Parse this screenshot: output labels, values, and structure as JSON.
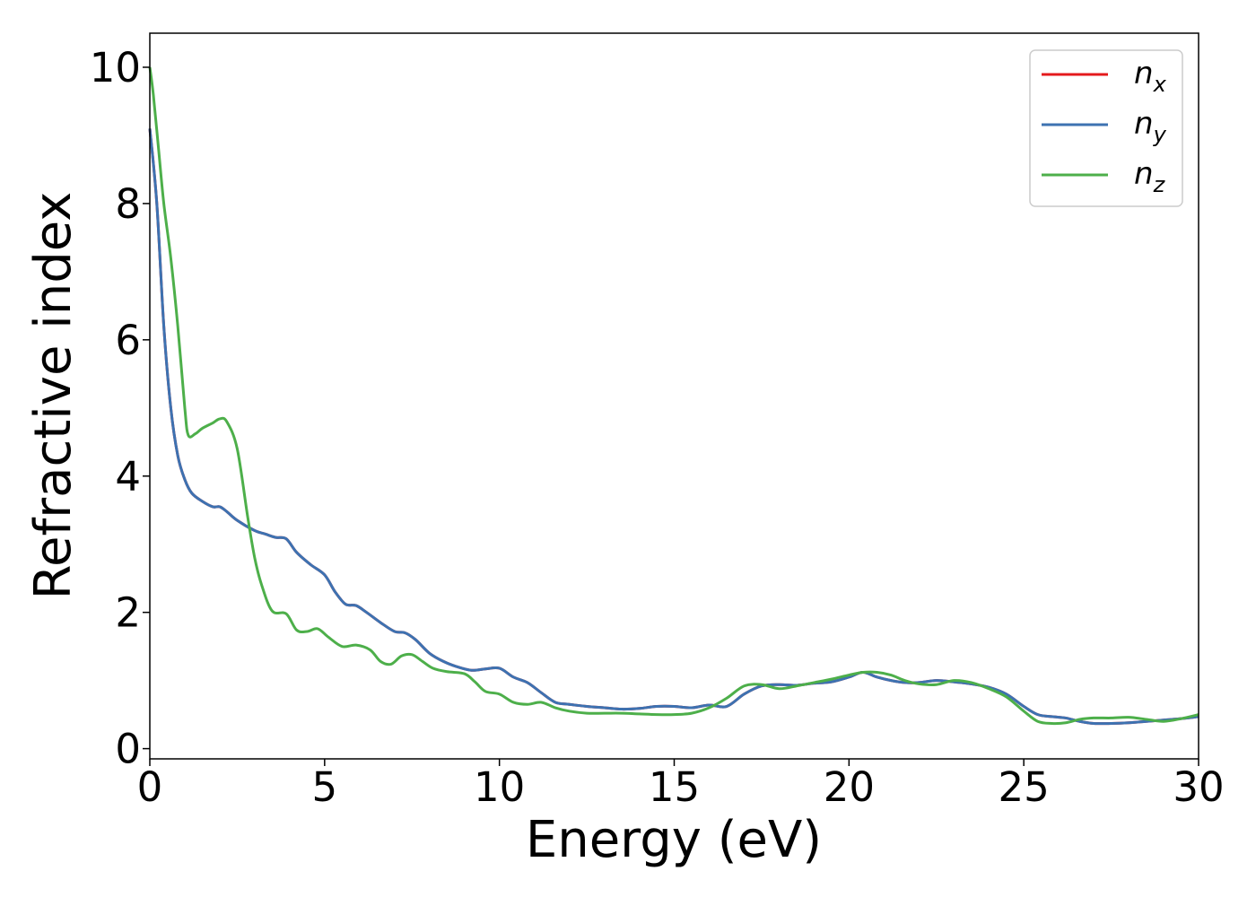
{
  "chart_data": {
    "type": "line",
    "title": "",
    "xlabel": "Energy (eV)",
    "ylabel": "Refractive index",
    "xlim": [
      0,
      30
    ],
    "ylim": [
      -0.15,
      10.5
    ],
    "xticks": [
      0,
      5,
      10,
      15,
      20,
      25,
      30
    ],
    "yticks": [
      0,
      2,
      4,
      6,
      8,
      10
    ],
    "grid": false,
    "legend_position": "top-right",
    "series": [
      {
        "name": "n_x",
        "label_base": "n",
        "label_sub": "x",
        "color": "#e41a1c",
        "x": [
          0,
          0.2,
          0.4,
          0.6,
          0.8,
          1.0,
          1.2,
          1.5,
          1.8,
          2.0,
          2.2,
          2.5,
          3.0,
          3.3,
          3.6,
          3.9,
          4.2,
          4.6,
          5.0,
          5.3,
          5.6,
          5.9,
          6.2,
          6.6,
          7.0,
          7.3,
          7.6,
          8.0,
          8.4,
          8.8,
          9.2,
          9.6,
          10.0,
          10.4,
          10.8,
          11.2,
          11.6,
          12.0,
          12.5,
          13.0,
          13.5,
          14.0,
          14.5,
          15.0,
          15.5,
          16.0,
          16.5,
          17.0,
          17.5,
          18.0,
          18.5,
          19.0,
          19.5,
          20.0,
          20.4,
          20.8,
          21.2,
          21.6,
          22.0,
          22.5,
          23.0,
          23.5,
          24.0,
          24.5,
          25.0,
          25.4,
          25.8,
          26.2,
          26.6,
          27.0,
          27.5,
          28.0,
          28.5,
          29.0,
          29.5,
          30.0
        ],
        "values": [
          9.1,
          8.0,
          6.2,
          5.0,
          4.3,
          3.95,
          3.75,
          3.63,
          3.55,
          3.55,
          3.48,
          3.35,
          3.2,
          3.15,
          3.1,
          3.08,
          2.88,
          2.7,
          2.55,
          2.3,
          2.12,
          2.1,
          2.0,
          1.85,
          1.72,
          1.7,
          1.6,
          1.4,
          1.28,
          1.2,
          1.15,
          1.17,
          1.18,
          1.05,
          0.97,
          0.82,
          0.68,
          0.65,
          0.62,
          0.6,
          0.58,
          0.59,
          0.62,
          0.62,
          0.6,
          0.64,
          0.62,
          0.8,
          0.92,
          0.94,
          0.93,
          0.96,
          0.98,
          1.05,
          1.12,
          1.05,
          1.0,
          0.97,
          0.97,
          1.0,
          0.98,
          0.95,
          0.9,
          0.8,
          0.62,
          0.5,
          0.47,
          0.45,
          0.4,
          0.37,
          0.37,
          0.38,
          0.4,
          0.42,
          0.44,
          0.47
        ]
      },
      {
        "name": "n_y",
        "label_base": "n",
        "label_sub": "y",
        "color": "#3d72b1",
        "x": [
          0,
          0.2,
          0.4,
          0.6,
          0.8,
          1.0,
          1.2,
          1.5,
          1.8,
          2.0,
          2.2,
          2.5,
          3.0,
          3.3,
          3.6,
          3.9,
          4.2,
          4.6,
          5.0,
          5.3,
          5.6,
          5.9,
          6.2,
          6.6,
          7.0,
          7.3,
          7.6,
          8.0,
          8.4,
          8.8,
          9.2,
          9.6,
          10.0,
          10.4,
          10.8,
          11.2,
          11.6,
          12.0,
          12.5,
          13.0,
          13.5,
          14.0,
          14.5,
          15.0,
          15.5,
          16.0,
          16.5,
          17.0,
          17.5,
          18.0,
          18.5,
          19.0,
          19.5,
          20.0,
          20.4,
          20.8,
          21.2,
          21.6,
          22.0,
          22.5,
          23.0,
          23.5,
          24.0,
          24.5,
          25.0,
          25.4,
          25.8,
          26.2,
          26.6,
          27.0,
          27.5,
          28.0,
          28.5,
          29.0,
          29.5,
          30.0
        ],
        "values": [
          9.1,
          8.0,
          6.2,
          5.0,
          4.3,
          3.95,
          3.75,
          3.63,
          3.55,
          3.55,
          3.48,
          3.35,
          3.2,
          3.15,
          3.1,
          3.08,
          2.88,
          2.7,
          2.55,
          2.3,
          2.12,
          2.1,
          2.0,
          1.85,
          1.72,
          1.7,
          1.6,
          1.4,
          1.28,
          1.2,
          1.15,
          1.17,
          1.18,
          1.05,
          0.97,
          0.82,
          0.68,
          0.65,
          0.62,
          0.6,
          0.58,
          0.59,
          0.62,
          0.62,
          0.6,
          0.64,
          0.62,
          0.8,
          0.92,
          0.94,
          0.93,
          0.96,
          0.98,
          1.05,
          1.12,
          1.05,
          1.0,
          0.97,
          0.97,
          1.0,
          0.98,
          0.95,
          0.9,
          0.8,
          0.62,
          0.5,
          0.47,
          0.45,
          0.4,
          0.37,
          0.37,
          0.38,
          0.4,
          0.42,
          0.44,
          0.47
        ]
      },
      {
        "name": "n_z",
        "label_base": "n",
        "label_sub": "z",
        "color": "#4daf4a",
        "x": [
          0,
          0.1,
          0.25,
          0.4,
          0.6,
          0.8,
          1.0,
          1.1,
          1.3,
          1.5,
          1.8,
          2.0,
          2.2,
          2.5,
          2.8,
          3.0,
          3.2,
          3.5,
          3.9,
          4.2,
          4.5,
          4.8,
          5.1,
          5.5,
          5.9,
          6.3,
          6.6,
          6.9,
          7.2,
          7.5,
          7.8,
          8.1,
          8.5,
          9.0,
          9.3,
          9.6,
          10.0,
          10.4,
          10.8,
          11.2,
          11.6,
          12.0,
          12.5,
          13.0,
          13.5,
          14.0,
          14.5,
          15.0,
          15.5,
          16.0,
          16.5,
          17.0,
          17.5,
          18.0,
          18.5,
          19.0,
          19.5,
          20.0,
          20.4,
          20.8,
          21.2,
          21.6,
          22.0,
          22.5,
          23.0,
          23.5,
          24.0,
          24.5,
          25.0,
          25.4,
          25.8,
          26.2,
          26.6,
          27.0,
          27.5,
          28.0,
          28.5,
          29.0,
          29.5,
          30.0
        ],
        "values": [
          10.0,
          9.6,
          8.8,
          8.0,
          7.2,
          6.2,
          5.0,
          4.6,
          4.62,
          4.7,
          4.78,
          4.84,
          4.8,
          4.4,
          3.4,
          2.8,
          2.4,
          2.02,
          1.98,
          1.74,
          1.72,
          1.76,
          1.64,
          1.5,
          1.52,
          1.45,
          1.28,
          1.24,
          1.36,
          1.38,
          1.28,
          1.18,
          1.13,
          1.1,
          0.98,
          0.84,
          0.8,
          0.68,
          0.65,
          0.68,
          0.6,
          0.55,
          0.52,
          0.52,
          0.52,
          0.51,
          0.5,
          0.5,
          0.52,
          0.6,
          0.74,
          0.92,
          0.94,
          0.88,
          0.92,
          0.97,
          1.02,
          1.08,
          1.12,
          1.12,
          1.08,
          1.0,
          0.95,
          0.94,
          1.0,
          0.97,
          0.88,
          0.76,
          0.55,
          0.4,
          0.37,
          0.38,
          0.43,
          0.45,
          0.45,
          0.46,
          0.43,
          0.4,
          0.44,
          0.5
        ]
      }
    ]
  }
}
